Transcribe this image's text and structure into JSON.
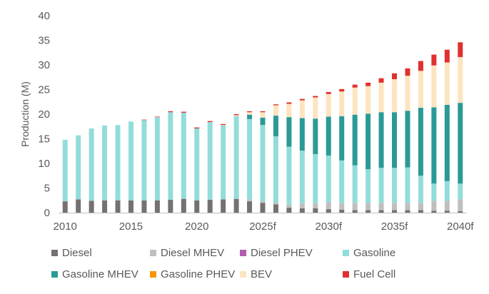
{
  "chart_data": {
    "type": "bar",
    "stacked": true,
    "title": "",
    "xlabel": "",
    "ylabel": "Production (M)",
    "ylim": [
      0,
      40
    ],
    "yticks": [
      0,
      5,
      10,
      15,
      20,
      25,
      30,
      35,
      40
    ],
    "grid": false,
    "legend_position": "bottom",
    "categories": [
      "2010",
      "2011",
      "2012",
      "2013",
      "2014",
      "2015",
      "2016",
      "2017",
      "2018",
      "2019",
      "2020",
      "2021",
      "2022",
      "2023",
      "2024",
      "2025f",
      "2026f",
      "2027f",
      "2028f",
      "2029f",
      "2030f",
      "2031f",
      "2032f",
      "2033f",
      "2034f",
      "2035f",
      "2036f",
      "2037f",
      "2038f",
      "2039f",
      "2040f"
    ],
    "xtick_labels": [
      "2010",
      "",
      "",
      "",
      "",
      "2015",
      "",
      "",
      "",
      "",
      "2020",
      "",
      "",
      "",
      "",
      "2025f",
      "",
      "",
      "",
      "",
      "2030f",
      "",
      "",
      "",
      "",
      "2035f",
      "",
      "",
      "",
      "",
      "2040f"
    ],
    "series": [
      {
        "name": "Diesel",
        "color": "#767171",
        "values": [
          2.3,
          2.7,
          2.4,
          2.5,
          2.5,
          2.5,
          2.5,
          2.5,
          2.6,
          2.8,
          2.5,
          2.6,
          2.7,
          2.8,
          2.3,
          2.0,
          1.7,
          1.0,
          0.9,
          0.9,
          0.7,
          0.6,
          0.5,
          0.5,
          0.5,
          0.5,
          0.5,
          0.5,
          0.4,
          0.4,
          0.3
        ]
      },
      {
        "name": "Diesel MHEV",
        "color": "#bfbfbf",
        "values": [
          0,
          0,
          0,
          0,
          0,
          0,
          0,
          0,
          0,
          0,
          0,
          0,
          0,
          0,
          0.4,
          0.3,
          0.3,
          0.6,
          1.0,
          1.0,
          1.4,
          1.4,
          1.5,
          1.5,
          1.5,
          1.5,
          1.5,
          1.5,
          2.0,
          2.0,
          2.4
        ]
      },
      {
        "name": "Diesel PHEV",
        "color": "#b05fb0",
        "values": [
          0,
          0,
          0,
          0,
          0,
          0,
          0,
          0,
          0,
          0,
          0,
          0,
          0,
          0,
          0,
          0,
          0,
          0,
          0,
          0,
          0,
          0,
          0,
          0,
          0,
          0,
          0,
          0,
          0,
          0,
          0
        ]
      },
      {
        "name": "Gasoline",
        "color": "#92ddda",
        "values": [
          12.5,
          13.0,
          14.7,
          15.2,
          15.3,
          16.0,
          16.3,
          16.9,
          17.8,
          17.5,
          14.6,
          15.8,
          15.0,
          16.8,
          16.3,
          15.5,
          13.5,
          11.8,
          10.7,
          10.0,
          9.5,
          8.6,
          7.6,
          6.8,
          7.1,
          7.1,
          7.2,
          5.5,
          3.5,
          4.0,
          3.2
        ]
      },
      {
        "name": "Gasoline MHEV",
        "color": "#2b9a96",
        "values": [
          0,
          0,
          0,
          0,
          0,
          0,
          0,
          0,
          0,
          0,
          0,
          0,
          0,
          0,
          0.9,
          1.5,
          4.2,
          6.0,
          6.6,
          7.2,
          7.9,
          9.0,
          10.3,
          11.3,
          11.3,
          11.3,
          11.5,
          13.8,
          15.5,
          15.5,
          16.4
        ]
      },
      {
        "name": "Gasoline PHEV",
        "color": "#f5960a",
        "values": [
          0,
          0,
          0,
          0,
          0,
          0,
          0,
          0,
          0,
          0,
          0,
          0,
          0,
          0,
          0,
          0,
          0,
          0,
          0,
          0,
          0,
          0,
          0,
          0,
          0,
          0,
          0,
          0,
          0,
          0,
          0
        ]
      },
      {
        "name": "BEV",
        "color": "#fde4c0",
        "values": [
          0,
          0,
          0,
          0,
          0,
          0,
          0,
          0,
          0,
          0,
          0,
          0,
          0.1,
          0.2,
          0.5,
          1.1,
          2.1,
          2.7,
          3.6,
          4.3,
          4.6,
          5.0,
          5.5,
          5.6,
          6.0,
          6.7,
          7.1,
          7.5,
          8.5,
          8.6,
          9.3
        ]
      },
      {
        "name": "Fuel Cell",
        "color": "#e03030",
        "values": [
          0,
          0,
          0,
          0,
          0,
          0,
          0.1,
          0.1,
          0.2,
          0.2,
          0.2,
          0.2,
          0.2,
          0.2,
          0.2,
          0.2,
          0.2,
          0.3,
          0.3,
          0.3,
          0.4,
          0.5,
          0.6,
          0.7,
          0.9,
          1.2,
          1.5,
          2.0,
          2.2,
          2.6,
          3.0
        ]
      }
    ]
  }
}
